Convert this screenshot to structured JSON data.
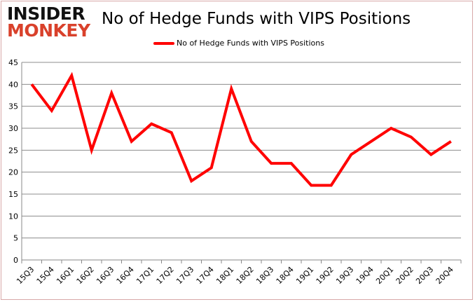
{
  "logo": {
    "line1": "INSIDER",
    "line2": "MONKEY"
  },
  "chart_data": {
    "type": "line",
    "title": "No of Hedge Funds with VIPS Positions",
    "xlabel": "",
    "ylabel": "",
    "ylim": [
      0,
      45
    ],
    "yticks": [
      0,
      5,
      10,
      15,
      20,
      25,
      30,
      35,
      40,
      45
    ],
    "grid": true,
    "legend_position": "top",
    "categories": [
      "15Q3",
      "15Q4",
      "16Q1",
      "16Q2",
      "16Q3",
      "16Q4",
      "17Q1",
      "17Q2",
      "17Q3",
      "17Q4",
      "18Q1",
      "18Q2",
      "18Q3",
      "18Q4",
      "19Q1",
      "19Q2",
      "19Q3",
      "19Q4",
      "20Q1",
      "20Q2",
      "20Q3",
      "20Q4"
    ],
    "series": [
      {
        "name": "No of Hedge Funds with VIPS Positions",
        "color": "#ff0000",
        "values": [
          40,
          34,
          42,
          25,
          38,
          27,
          31,
          29,
          18,
          21,
          39,
          27,
          22,
          22,
          17,
          17,
          24,
          27,
          30,
          28,
          24,
          27
        ]
      }
    ]
  }
}
